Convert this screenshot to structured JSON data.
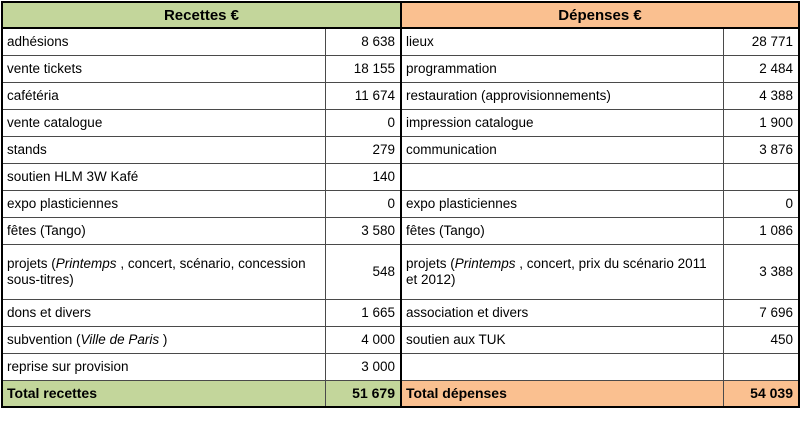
{
  "colors": {
    "recettes_bg": "#c3d69b",
    "depenses_bg": "#fac090",
    "grid_line": "#4a4a4a",
    "heavy_border": "#000000",
    "text": "#000000",
    "page_bg": "#ffffff"
  },
  "recettes": {
    "header": "Recettes €",
    "rows": [
      {
        "label": [
          {
            "t": "adhésions"
          }
        ],
        "value": "8 638"
      },
      {
        "label": [
          {
            "t": "vente tickets"
          }
        ],
        "value": "18 155"
      },
      {
        "label": [
          {
            "t": "cafétéria"
          }
        ],
        "value": "11 674"
      },
      {
        "label": [
          {
            "t": "vente catalogue"
          }
        ],
        "value": "0"
      },
      {
        "label": [
          {
            "t": "stands"
          }
        ],
        "value": "279"
      },
      {
        "label": [
          {
            "t": "soutien HLM 3W Kafé"
          }
        ],
        "value": "140"
      },
      {
        "label": [
          {
            "t": "expo plasticiennes"
          }
        ],
        "value": "0"
      },
      {
        "label": [
          {
            "t": "fêtes (Tango)"
          }
        ],
        "value": "3 580"
      },
      {
        "label": [
          {
            "t": "projets ("
          },
          {
            "t": "Printemps",
            "i": true
          },
          {
            "t": " , concert, scénario, concession sous-titres)"
          }
        ],
        "value": "548",
        "tall": true
      },
      {
        "label": [
          {
            "t": "dons et divers"
          }
        ],
        "value": "1 665"
      },
      {
        "label": [
          {
            "t": "subvention ("
          },
          {
            "t": "Ville de Paris",
            "i": true
          },
          {
            "t": " )"
          }
        ],
        "value": "4 000"
      },
      {
        "label": [
          {
            "t": "reprise sur provision"
          }
        ],
        "value": "3 000"
      }
    ],
    "total": {
      "label": "Total recettes",
      "value": "51 679"
    }
  },
  "depenses": {
    "header": "Dépenses €",
    "rows": [
      {
        "label": [
          {
            "t": "lieux"
          }
        ],
        "value": "28 771"
      },
      {
        "label": [
          {
            "t": "programmation"
          }
        ],
        "value": "2 484"
      },
      {
        "label": [
          {
            "t": "restauration (approvisionnements)"
          }
        ],
        "value": "4 388"
      },
      {
        "label": [
          {
            "t": "impression catalogue"
          }
        ],
        "value": "1 900"
      },
      {
        "label": [
          {
            "t": "communication"
          }
        ],
        "value": "3 876"
      },
      {
        "label": [],
        "value": ""
      },
      {
        "label": [
          {
            "t": "expo plasticiennes"
          }
        ],
        "value": "0"
      },
      {
        "label": [
          {
            "t": "fêtes (Tango)"
          }
        ],
        "value": "1 086"
      },
      {
        "label": [
          {
            "t": "projets ("
          },
          {
            "t": "Printemps",
            "i": true
          },
          {
            "t": " , concert, prix du scénario 2011 et 2012)"
          }
        ],
        "value": "3 388",
        "tall": true
      },
      {
        "label": [
          {
            "t": "association et divers"
          }
        ],
        "value": "7 696"
      },
      {
        "label": [
          {
            "t": "soutien aux TUK"
          }
        ],
        "value": "450"
      },
      {
        "label": [],
        "value": ""
      }
    ],
    "total": {
      "label": "Total dépenses",
      "value": "54 039"
    }
  }
}
